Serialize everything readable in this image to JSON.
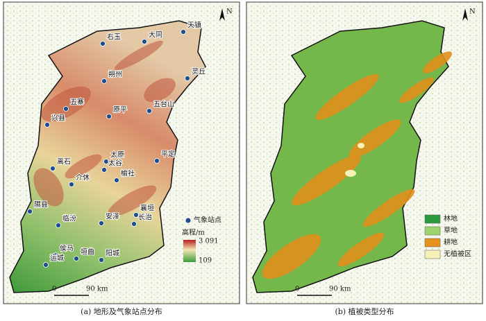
{
  "panels": [
    {
      "caption": "(a) 地形及气象站点分布",
      "stations": [
        "天镇",
        "右玉",
        "大同",
        "灵丘",
        "朔州",
        "五寨",
        "原平",
        "五台山",
        "兴县",
        "太原",
        "平定",
        "离石",
        "太谷",
        "介休",
        "榆社",
        "隰县",
        "安泽",
        "襄垣",
        "长治",
        "临汾",
        "侯马",
        "垣曲",
        "运城",
        "阳城"
      ],
      "legend": {
        "station": "气象站点",
        "elevation_title": "高程/m",
        "max": "3 091",
        "min": "109"
      },
      "scale": {
        "start": "0",
        "end": "90 km"
      },
      "north": "N"
    },
    {
      "caption": "(b) 植被类型分布",
      "legend": [
        "林地",
        "草地",
        "耕地",
        "无植被区"
      ],
      "scale": {
        "start": "0",
        "end": "90 km"
      },
      "north": "N"
    }
  ]
}
